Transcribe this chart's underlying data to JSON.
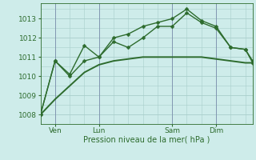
{
  "title": "",
  "xlabel": "Pression niveau de la mer( hPa )",
  "ylabel": "",
  "bg_color": "#ceecea",
  "grid_color": "#a8ceca",
  "line_color": "#2d6b2d",
  "vline_color": "#7788aa",
  "yticks": [
    1008,
    1009,
    1010,
    1011,
    1012,
    1013
  ],
  "ylim": [
    1007.7,
    1013.8
  ],
  "xlim": [
    0,
    14.5
  ],
  "xtick_positions": [
    1,
    4,
    9,
    12
  ],
  "xtick_labels": [
    "Ven",
    "Lun",
    "Sam",
    "Dim"
  ],
  "vline_positions": [
    1,
    4,
    9,
    12
  ],
  "series": [
    {
      "x": [
        0,
        1,
        2,
        3,
        4,
        5,
        6,
        7,
        8,
        9,
        10,
        11,
        12,
        13,
        14,
        14.5
      ],
      "y": [
        1008.0,
        1008.8,
        1009.5,
        1010.2,
        1010.6,
        1010.8,
        1010.9,
        1011.0,
        1011.0,
        1011.0,
        1011.0,
        1011.0,
        1010.9,
        1010.8,
        1010.7,
        1010.7
      ],
      "marker": null,
      "lw": 1.4,
      "ms": 0
    },
    {
      "x": [
        0,
        1,
        2,
        3,
        4,
        5,
        6,
        7,
        8,
        9,
        10,
        11,
        12,
        13,
        14,
        14.5
      ],
      "y": [
        1008.0,
        1010.8,
        1010.1,
        1011.6,
        1011.0,
        1011.8,
        1011.5,
        1012.0,
        1012.6,
        1012.6,
        1013.3,
        1012.8,
        1012.5,
        1011.5,
        1011.4,
        1010.8
      ],
      "marker": "D",
      "lw": 1.0,
      "ms": 2.5
    },
    {
      "x": [
        0,
        1,
        2,
        3,
        4,
        5,
        6,
        7,
        8,
        9,
        10,
        11,
        12,
        13,
        14,
        14.5
      ],
      "y": [
        1008.0,
        1010.8,
        1010.0,
        1010.8,
        1011.0,
        1012.0,
        1012.2,
        1012.6,
        1012.8,
        1013.0,
        1013.5,
        1012.9,
        1012.6,
        1011.5,
        1011.4,
        1010.7
      ],
      "marker": "D",
      "lw": 1.0,
      "ms": 2.5
    }
  ]
}
